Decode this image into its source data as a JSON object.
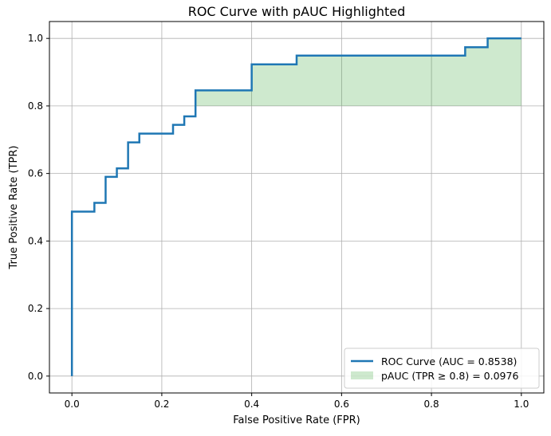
{
  "chart_data": {
    "type": "line",
    "title": "ROC Curve with pAUC Highlighted",
    "xlabel": "False Positive Rate (FPR)",
    "ylabel": "True Positive Rate (TPR)",
    "xlim": [
      -0.05,
      1.05
    ],
    "ylim": [
      -0.05,
      1.05
    ],
    "xticks": [
      "0.0",
      "0.2",
      "0.4",
      "0.6",
      "0.8",
      "1.0"
    ],
    "yticks": [
      "0.0",
      "0.2",
      "0.4",
      "0.6",
      "0.8",
      "1.0"
    ],
    "grid": true,
    "legend_position": "bottom-right",
    "series": [
      {
        "name": "ROC Curve (AUC = 0.8538)",
        "color": "#1f77b4",
        "x": [
          0.0,
          0.0,
          0.05,
          0.05,
          0.075,
          0.075,
          0.1,
          0.1,
          0.125,
          0.125,
          0.15,
          0.15,
          0.225,
          0.225,
          0.25,
          0.25,
          0.275,
          0.275,
          0.4,
          0.4,
          0.5,
          0.5,
          0.875,
          0.875,
          0.925,
          0.925,
          1.0
        ],
        "y": [
          0.0,
          0.487,
          0.487,
          0.513,
          0.513,
          0.59,
          0.59,
          0.615,
          0.615,
          0.692,
          0.692,
          0.718,
          0.718,
          0.744,
          0.744,
          0.769,
          0.769,
          0.846,
          0.846,
          0.923,
          0.923,
          0.949,
          0.949,
          0.974,
          0.974,
          1.0,
          1.0
        ]
      }
    ],
    "shaded_region": {
      "name": "pAUC (TPR ≥ 0.8) = 0.0976",
      "color": "#2ca02c",
      "opacity": 0.23,
      "threshold": 0.8
    }
  }
}
